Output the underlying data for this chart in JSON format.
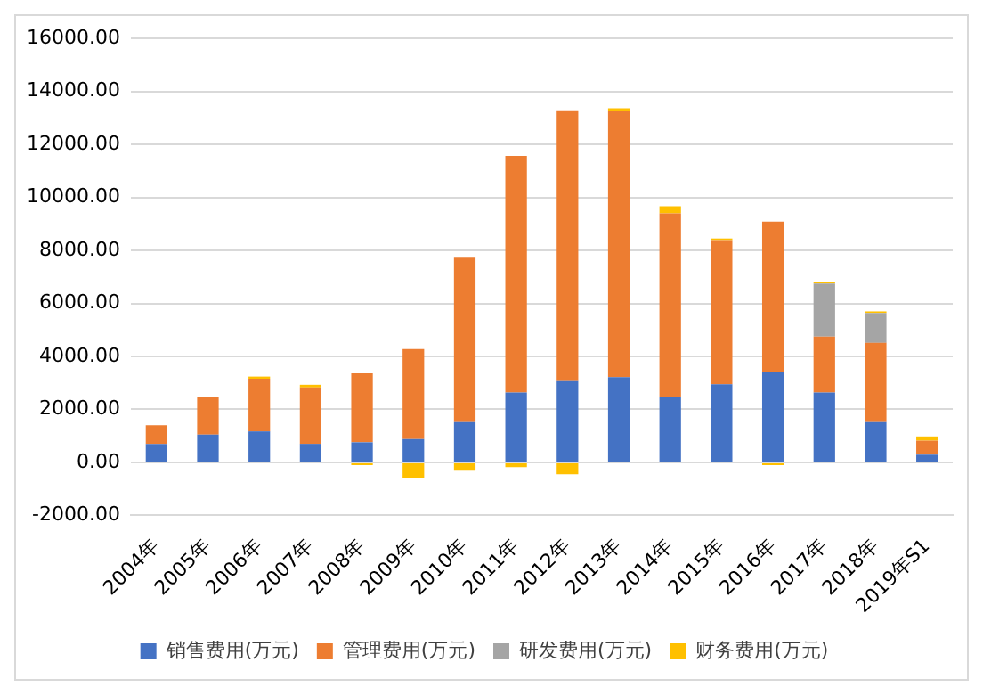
{
  "chart_data": {
    "type": "bar",
    "stacked": true,
    "categories": [
      "2004年",
      "2005年",
      "2006年",
      "2007年",
      "2008年",
      "2009年",
      "2010年",
      "2011年",
      "2012年",
      "2013年",
      "2014年",
      "2015年",
      "2016年",
      "2017年",
      "2018年",
      "2019年S1"
    ],
    "series": [
      {
        "name": "销售费用(万元)",
        "color": "#4472c4",
        "values": [
          700,
          1050,
          1170,
          700,
          760,
          880,
          1520,
          2640,
          3070,
          3220,
          2480,
          2950,
          3420,
          2640,
          1520,
          290
        ]
      },
      {
        "name": "管理费用(万元)",
        "color": "#ed7d31",
        "values": [
          700,
          1400,
          1990,
          2130,
          2600,
          3400,
          6240,
          8930,
          10190,
          10030,
          6920,
          5440,
          5670,
          2110,
          2990,
          530
        ]
      },
      {
        "name": "研发费用(万元)",
        "color": "#a5a5a5",
        "values": [
          null,
          null,
          null,
          null,
          null,
          null,
          null,
          null,
          null,
          null,
          null,
          null,
          null,
          2000,
          1130,
          null
        ]
      },
      {
        "name": "财务费用(万元)",
        "color": "#ffc000",
        "values": [
          null,
          null,
          80,
          100,
          -100,
          -570,
          -310,
          -180,
          -450,
          120,
          270,
          60,
          -100,
          60,
          60,
          160
        ]
      }
    ],
    "ylim": [
      -2000,
      16000
    ],
    "yticks": [
      {
        "value": -2000,
        "label": "-2000.00"
      },
      {
        "value": 0,
        "label": "0.00"
      },
      {
        "value": 2000,
        "label": "2000.00"
      },
      {
        "value": 4000,
        "label": "4000.00"
      },
      {
        "value": 6000,
        "label": "6000.00"
      },
      {
        "value": 8000,
        "label": "8000.00"
      },
      {
        "value": 10000,
        "label": "10000.00"
      },
      {
        "value": 12000,
        "label": "12000.00"
      },
      {
        "value": 14000,
        "label": "14000.00"
      },
      {
        "value": 16000,
        "label": "16000.00"
      }
    ],
    "grid": "y",
    "legend": "bottom"
  }
}
